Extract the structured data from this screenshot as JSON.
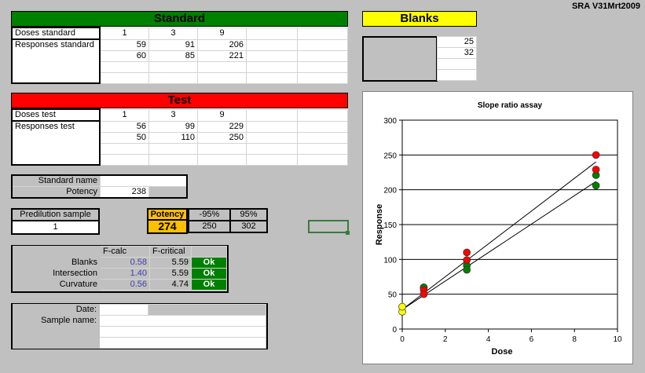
{
  "version": "SRA V31Mrt2009",
  "standard": {
    "title": "Standard",
    "doses_label": "Doses standard",
    "doses": [
      "1",
      "3",
      "9"
    ],
    "responses_label": "Responses standard",
    "responses": [
      [
        "59",
        "91",
        "206"
      ],
      [
        "60",
        "85",
        "221"
      ]
    ]
  },
  "blanks": {
    "title": "Blanks",
    "values": [
      "25",
      "32"
    ]
  },
  "test": {
    "title": "Test",
    "doses_label": "Doses test",
    "doses": [
      "1",
      "3",
      "9"
    ],
    "responses_label": "Responses test",
    "responses": [
      [
        "56",
        "99",
        "229"
      ],
      [
        "50",
        "110",
        "250"
      ]
    ]
  },
  "standard_info": {
    "name_label": "Standard name",
    "name_value": "",
    "potency_label": "Potency",
    "potency_value": "238"
  },
  "predilution": {
    "label": "Predilution sample",
    "value": "1"
  },
  "potency": {
    "label": "Potency",
    "value": "274",
    "lo_label": "-95%",
    "lo": "250",
    "hi_label": "95%",
    "hi": "302"
  },
  "ftest": {
    "h_calc": "F-calc",
    "h_crit": "F-critical",
    "rows": [
      {
        "label": "Blanks",
        "calc": "0.58",
        "crit": "5.59",
        "status": "Ok"
      },
      {
        "label": "Intersection",
        "calc": "1.40",
        "crit": "5.59",
        "status": "Ok"
      },
      {
        "label": "Curvature",
        "calc": "0.56",
        "crit": "4.74",
        "status": "Ok"
      }
    ]
  },
  "meta": {
    "date_label": "Date:",
    "sample_label": "Sample name:"
  },
  "colors": {
    "standard": "#008000",
    "test": "#ff0000",
    "blank": "#ffff00",
    "potency_bg": "#ffc000",
    "ok_bg": "#008000"
  },
  "chart_data": {
    "type": "scatter",
    "title": "Slope ratio assay",
    "xlabel": "Dose",
    "ylabel": "Response",
    "xlim": [
      0,
      10
    ],
    "ylim": [
      0,
      300
    ],
    "xticks": [
      "0",
      "2",
      "4",
      "6",
      "8",
      "10"
    ],
    "yticks": [
      "0",
      "50",
      "100",
      "150",
      "200",
      "250",
      "300"
    ],
    "grid": "horizontal",
    "series": [
      {
        "color": "#ffff00",
        "points": [
          [
            0,
            25
          ],
          [
            0,
            32
          ]
        ]
      },
      {
        "color": "#008000",
        "points": [
          [
            1,
            59
          ],
          [
            1,
            60
          ],
          [
            3,
            91
          ],
          [
            3,
            85
          ],
          [
            9,
            206
          ],
          [
            9,
            221
          ]
        ]
      },
      {
        "color": "#ff0000",
        "points": [
          [
            1,
            56
          ],
          [
            1,
            50
          ],
          [
            3,
            99
          ],
          [
            3,
            110
          ],
          [
            9,
            229
          ],
          [
            9,
            250
          ]
        ]
      }
    ],
    "lines": [
      {
        "from": [
          0,
          28
        ],
        "to": [
          9,
          212
        ]
      },
      {
        "from": [
          0,
          28
        ],
        "to": [
          9,
          240
        ]
      }
    ]
  }
}
